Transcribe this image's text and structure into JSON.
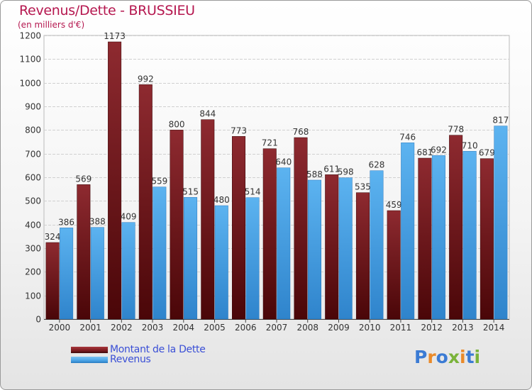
{
  "title": "Revenus/Dette - BRUSSIEU",
  "subtitle": "(en milliers d'€)",
  "logo_text": "Proxiti",
  "colors": {
    "dette": "#7b1a1e",
    "revenus": "#4aa3e6",
    "title": "#b5174f",
    "legend_text": "#3a4fd6"
  },
  "legend": [
    {
      "label": "Montant de la Dette",
      "color": "#7b1a1e"
    },
    {
      "label": "Revenus",
      "color": "#4aa3e6"
    }
  ],
  "chart_data": {
    "type": "bar",
    "title": "Revenus/Dette - BRUSSIEU",
    "subtitle": "(en milliers d'€)",
    "categories": [
      "2000",
      "2001",
      "2002",
      "2003",
      "2004",
      "2005",
      "2006",
      "2007",
      "2008",
      "2009",
      "2010",
      "2011",
      "2012",
      "2013",
      "2014"
    ],
    "series": [
      {
        "name": "Montant de la Dette",
        "values": [
          324,
          569,
          1173,
          992,
          800,
          844,
          773,
          721,
          768,
          611,
          535,
          459,
          681,
          778,
          679
        ]
      },
      {
        "name": "Revenus",
        "values": [
          386,
          388,
          409,
          559,
          515,
          480,
          514,
          640,
          588,
          598,
          628,
          746,
          692,
          710,
          817
        ]
      }
    ],
    "ylim": [
      0,
      1200
    ],
    "yticks": [
      0,
      100,
      200,
      300,
      400,
      500,
      600,
      700,
      800,
      900,
      1000,
      1100,
      1200
    ],
    "grid": true,
    "legend_position": "bottom-left"
  }
}
